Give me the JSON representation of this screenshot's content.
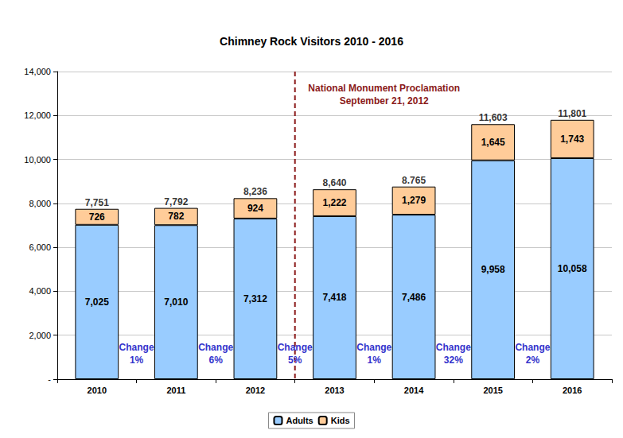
{
  "chart_data": {
    "type": "bar",
    "title": "Chimney Rock Visitors 2010 - 2016",
    "categories": [
      "2010",
      "2011",
      "2012",
      "2013",
      "2014",
      "2015",
      "2016"
    ],
    "stacked": true,
    "data_labels": true,
    "series": [
      {
        "name": "Adults",
        "color": "#99ccff",
        "values": [
          7025,
          7010,
          7312,
          7418,
          7486,
          9958,
          10058
        ],
        "value_labels": [
          "7,025",
          "7,010",
          "7,312",
          "7,418",
          "7,486",
          "9,958",
          "10,058"
        ]
      },
      {
        "name": "Kids",
        "color": "#ffcc99",
        "values": [
          726,
          782,
          924,
          1222,
          1279,
          1645,
          1743
        ],
        "value_labels": [
          "726",
          "782",
          "924",
          "1,222",
          "1,279",
          "1,645",
          "1,743"
        ]
      }
    ],
    "totals": [
      7751,
      7792,
      8236,
      8640,
      8765,
      11603,
      11801
    ],
    "total_labels": [
      "7,751",
      "7,792",
      "8,236",
      "8,640",
      "8.765",
      "11,603",
      "11,801"
    ],
    "changes": {
      "label": "Change",
      "values": [
        1,
        6,
        5,
        1,
        32,
        2
      ],
      "value_labels": [
        "1%",
        "6%",
        "5%",
        "1%",
        "32%",
        "2%"
      ]
    },
    "event": {
      "lines": [
        "National Monument Proclamation",
        "September 21, 2012"
      ],
      "between": [
        "2012",
        "2013"
      ]
    },
    "ylim": [
      0,
      14000
    ],
    "yticks": [
      {
        "value": 0,
        "label": "-"
      },
      {
        "value": 2000,
        "label": "2,000"
      },
      {
        "value": 4000,
        "label": "4,000"
      },
      {
        "value": 6000,
        "label": "6,000"
      },
      {
        "value": 8000,
        "label": "8,000"
      },
      {
        "value": 10000,
        "label": "10,000"
      },
      {
        "value": 12000,
        "label": "12,000"
      },
      {
        "value": 14000,
        "label": "14,000"
      }
    ],
    "grid": true,
    "legend": "bottom"
  }
}
